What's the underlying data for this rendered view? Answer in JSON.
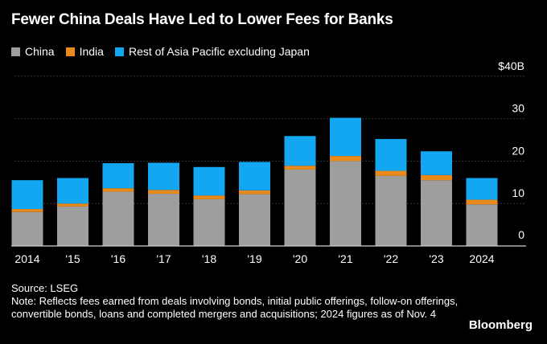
{
  "header": {
    "title": "Fewer China Deals Have Led to Lower Fees for Banks"
  },
  "legend": [
    {
      "name": "China",
      "color": "#9e9e9e"
    },
    {
      "name": "India",
      "color": "#e8891b"
    },
    {
      "name": "Rest of Asia Pacific excluding Japan",
      "color": "#13a7f1"
    }
  ],
  "chart_data": {
    "type": "bar",
    "stacked": true,
    "categories": [
      "2014",
      "'15",
      "'16",
      "'17",
      "'18",
      "'19",
      "'20",
      "'21",
      "'22",
      "'23",
      "2024"
    ],
    "series": [
      {
        "name": "China",
        "color": "#9e9e9e",
        "values": [
          8,
          9.3,
          12.8,
          12.3,
          11,
          12.2,
          18,
          20,
          16.5,
          15.5,
          9.8
        ]
      },
      {
        "name": "India",
        "color": "#e8891b",
        "values": [
          0.7,
          0.7,
          0.8,
          0.9,
          0.9,
          0.9,
          0.9,
          1.2,
          1.2,
          1.2,
          1.1
        ]
      },
      {
        "name": "Rest of Asia Pacific excluding Japan",
        "color": "#13a7f1",
        "values": [
          6.8,
          6,
          5.9,
          6.4,
          6.7,
          6.7,
          7,
          9,
          7.5,
          5.6,
          5.1
        ]
      }
    ],
    "yticks": [
      {
        "value": 40,
        "label": "$40B"
      },
      {
        "value": 30,
        "label": "30"
      },
      {
        "value": 20,
        "label": "20"
      },
      {
        "value": 10,
        "label": "10"
      },
      {
        "value": 0,
        "label": "0"
      }
    ],
    "ylim": [
      0,
      40
    ],
    "y_axis_position": "right",
    "grid": true
  },
  "footer": {
    "source": "Source: LSEG",
    "note": "Note: Reflects fees earned from deals involving bonds, initial public offerings, follow-on offerings, convertible bonds, loans and completed mergers and acquisitions; 2024 figures as of Nov. 4"
  },
  "brand": "Bloomberg"
}
